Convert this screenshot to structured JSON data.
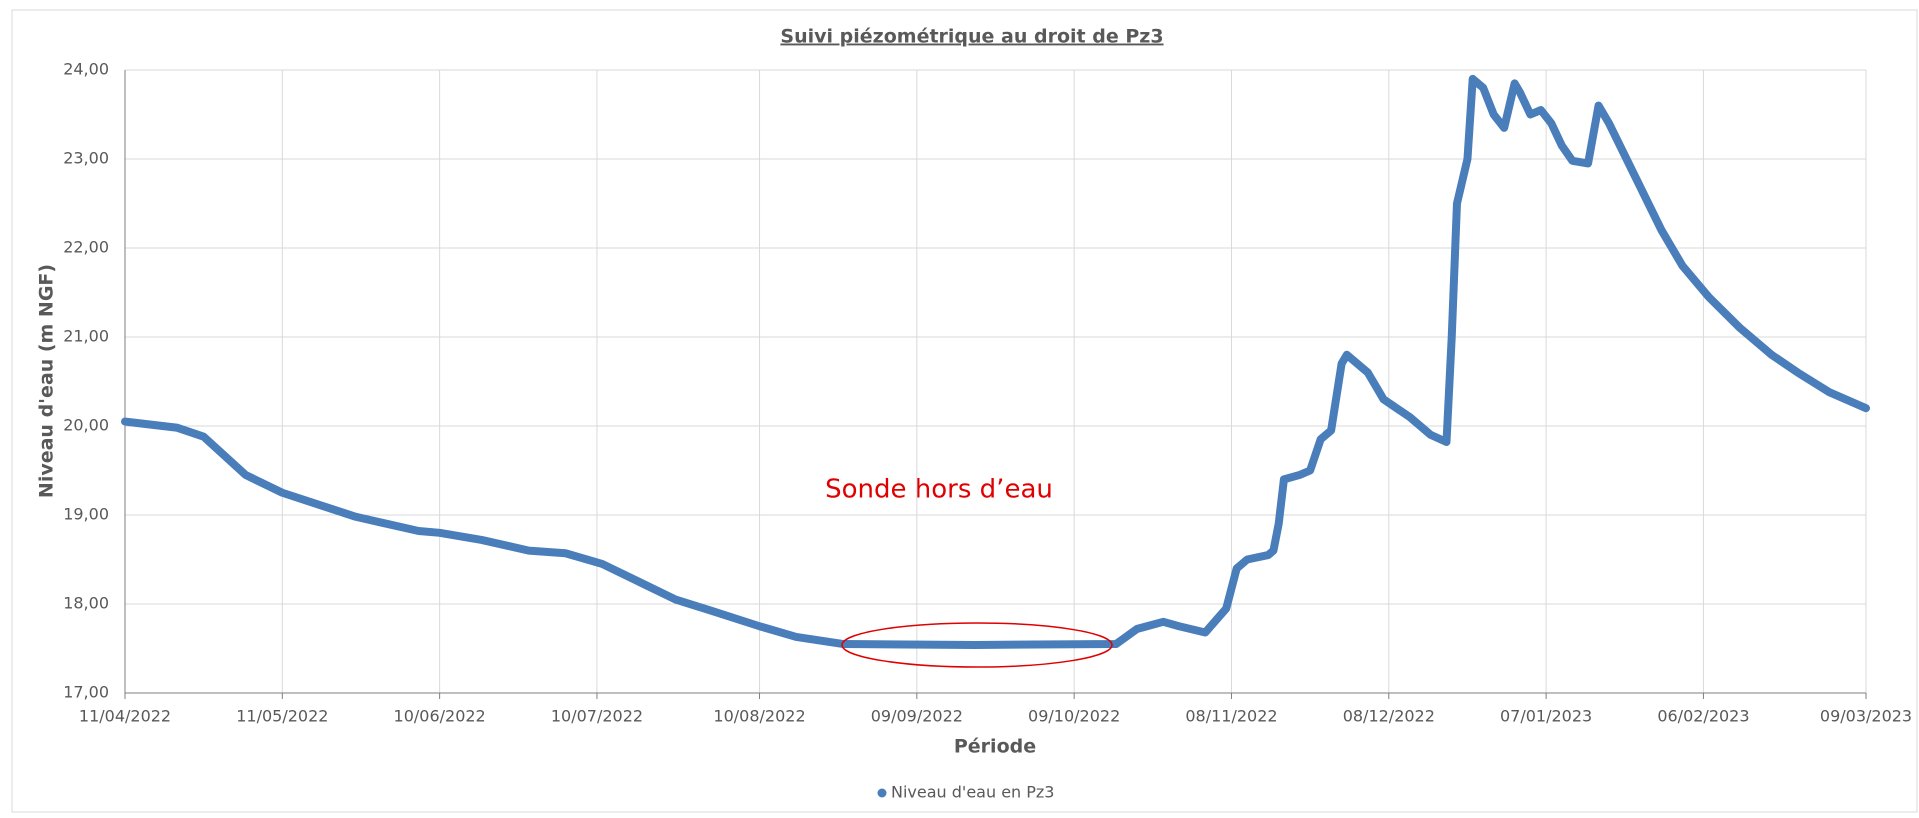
{
  "chart_data": {
    "type": "line",
    "title": "Suivi piézométrique au droit de Pz3",
    "x_label": "Période",
    "y_label": "Niveau d'eau (m NGF)",
    "annotation": "Sonde hors d’eau",
    "grid": true,
    "legend": "bottom",
    "xlim": [
      "2022-04-11",
      "2023-03-09"
    ],
    "xticks": [
      {
        "value": "2022-04-11",
        "label": "11/04/2022"
      },
      {
        "value": "2022-05-11",
        "label": "11/05/2022"
      },
      {
        "value": "2022-06-10",
        "label": "10/06/2022"
      },
      {
        "value": "2022-07-10",
        "label": "10/07/2022"
      },
      {
        "value": "2022-08-10",
        "label": "10/08/2022"
      },
      {
        "value": "2022-09-09",
        "label": "09/09/2022"
      },
      {
        "value": "2022-10-09",
        "label": "09/10/2022"
      },
      {
        "value": "2022-11-08",
        "label": "08/11/2022"
      },
      {
        "value": "2022-12-08",
        "label": "08/12/2022"
      },
      {
        "value": "2023-01-07",
        "label": "07/01/2023"
      },
      {
        "value": "2023-02-06",
        "label": "06/02/2023"
      },
      {
        "value": "2023-03-09",
        "label": "09/03/2023"
      }
    ],
    "ylim": [
      17,
      24
    ],
    "yticks": [
      {
        "value": 17,
        "label": "17,00"
      },
      {
        "value": 18,
        "label": "18,00"
      },
      {
        "value": 19,
        "label": "19,00"
      },
      {
        "value": 20,
        "label": "20,00"
      },
      {
        "value": 21,
        "label": "21,00"
      },
      {
        "value": 22,
        "label": "22,00"
      },
      {
        "value": 23,
        "label": "23,00"
      },
      {
        "value": 24,
        "label": "24,00"
      }
    ],
    "x": [
      "2022-04-11",
      "2022-04-21",
      "2022-04-26",
      "2022-05-04",
      "2022-05-11",
      "2022-05-25",
      "2022-06-06",
      "2022-06-10",
      "2022-06-18",
      "2022-06-27",
      "2022-07-04",
      "2022-07-11",
      "2022-07-18",
      "2022-07-25",
      "2022-08-01",
      "2022-08-10",
      "2022-08-17",
      "2022-08-26",
      "2022-09-20",
      "2022-10-17",
      "2022-10-21",
      "2022-10-26",
      "2022-10-29",
      "2022-11-03",
      "2022-11-07",
      "2022-11-09",
      "2022-11-11",
      "2022-11-15",
      "2022-11-16",
      "2022-11-17",
      "2022-11-18",
      "2022-11-21",
      "2022-11-23",
      "2022-11-25",
      "2022-11-27",
      "2022-11-29",
      "2022-11-30",
      "2022-12-04",
      "2022-12-07",
      "2022-12-12",
      "2022-12-16",
      "2022-12-19",
      "2022-12-20",
      "2022-12-21",
      "2022-12-23",
      "2022-12-24",
      "2022-12-26",
      "2022-12-28",
      "2022-12-30",
      "2023-01-01",
      "2023-01-02",
      "2023-01-04",
      "2023-01-06",
      "2023-01-08",
      "2023-01-10",
      "2023-01-12",
      "2023-01-15",
      "2023-01-17",
      "2023-01-19",
      "2023-01-24",
      "2023-01-29",
      "2023-02-02",
      "2023-02-07",
      "2023-02-13",
      "2023-02-19",
      "2023-02-24",
      "2023-03-02",
      "2023-03-09"
    ],
    "series": [
      {
        "name": "Niveau d'eau en Pz3",
        "color": "#4a7ebb",
        "values": [
          20.05,
          19.98,
          19.88,
          19.45,
          19.25,
          18.98,
          18.82,
          18.8,
          18.72,
          18.6,
          18.57,
          18.45,
          18.25,
          18.05,
          17.92,
          17.75,
          17.63,
          17.55,
          17.54,
          17.55,
          17.72,
          17.8,
          17.75,
          17.68,
          17.95,
          18.4,
          18.5,
          18.55,
          18.6,
          18.9,
          19.4,
          19.45,
          19.5,
          19.85,
          19.95,
          20.7,
          20.8,
          20.6,
          20.3,
          20.1,
          19.9,
          19.82,
          21.0,
          22.5,
          23.0,
          23.9,
          23.8,
          23.5,
          23.35,
          23.85,
          23.75,
          23.5,
          23.55,
          23.4,
          23.15,
          22.98,
          22.95,
          23.6,
          23.4,
          22.8,
          22.2,
          21.8,
          21.45,
          21.1,
          20.8,
          20.6,
          20.38,
          20.2
        ]
      }
    ]
  }
}
